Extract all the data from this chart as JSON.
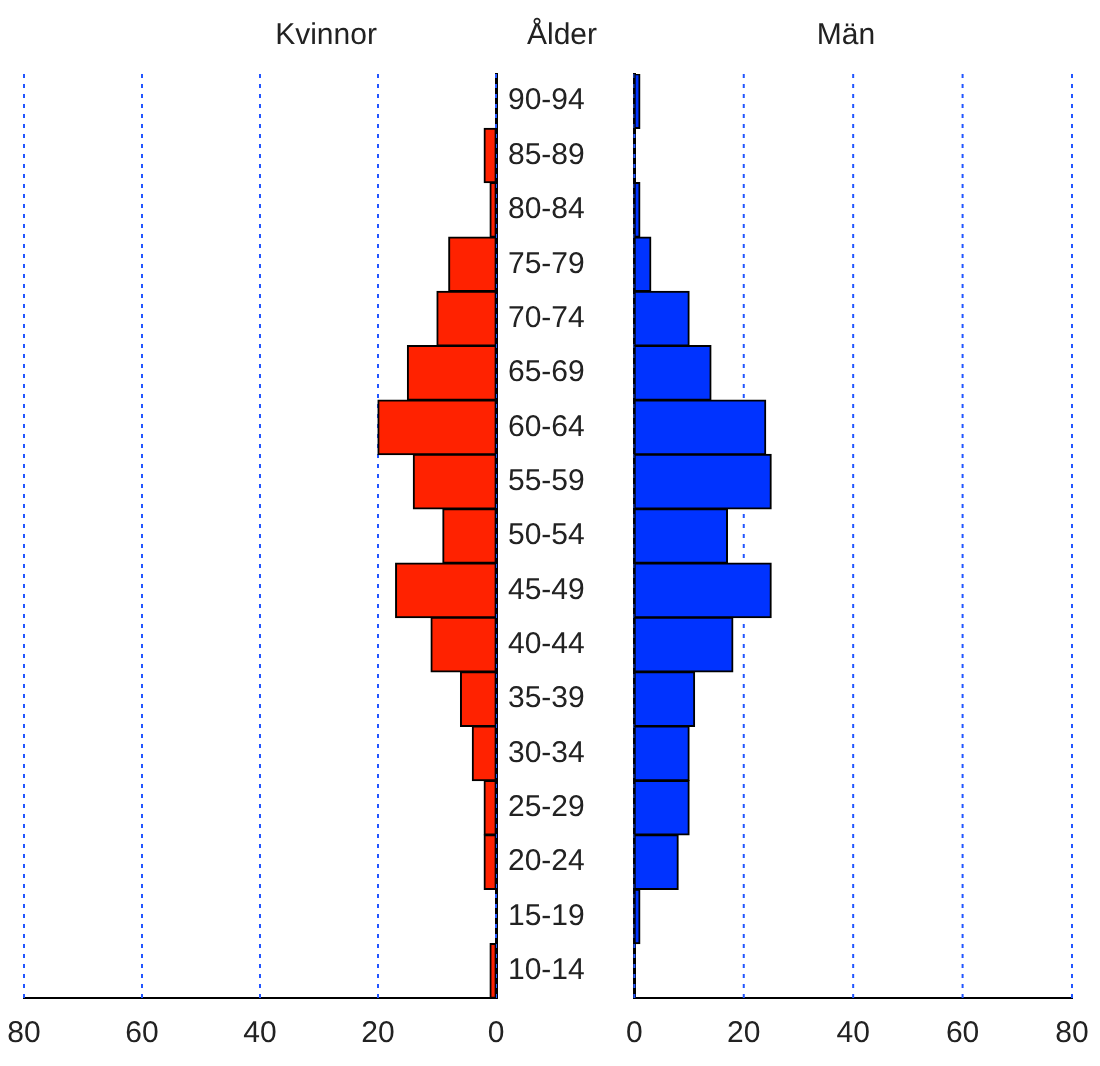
{
  "chart_data": [
    {
      "type": "bar",
      "orientation": "horizontal",
      "title": "Kvinnor",
      "ylabel": "Ålder",
      "categories": [
        "90-94",
        "85-89",
        "80-84",
        "75-79",
        "70-74",
        "65-69",
        "60-64",
        "55-59",
        "50-54",
        "45-49",
        "40-44",
        "35-39",
        "30-34",
        "25-29",
        "20-24",
        "15-19",
        "10-14"
      ],
      "series": [
        {
          "color": "#ff2200",
          "values": [
            0,
            2,
            1,
            8,
            10,
            15,
            20,
            14,
            9,
            17,
            11,
            6,
            4,
            2,
            2,
            0,
            1
          ]
        }
      ],
      "xlim": [
        80,
        0
      ],
      "xticks": [
        80,
        60,
        40,
        20,
        0
      ],
      "grid": "x",
      "legend": false
    },
    {
      "type": "bar",
      "orientation": "horizontal",
      "title": "Män",
      "categories": [
        null,
        null,
        null,
        null,
        null,
        null,
        null,
        null,
        null,
        null,
        null,
        null,
        null,
        null,
        null,
        null,
        null
      ],
      "series": [
        {
          "color": "#0033ff",
          "values": [
            1,
            0,
            1,
            3,
            10,
            14,
            24,
            25,
            17,
            25,
            18,
            11,
            10,
            10,
            8,
            1,
            0
          ]
        }
      ],
      "xlim": [
        0,
        80
      ],
      "xticks": [
        0,
        20,
        40,
        60,
        80
      ],
      "grid": "x",
      "legend": false,
      "tick_labels": "x"
    }
  ]
}
